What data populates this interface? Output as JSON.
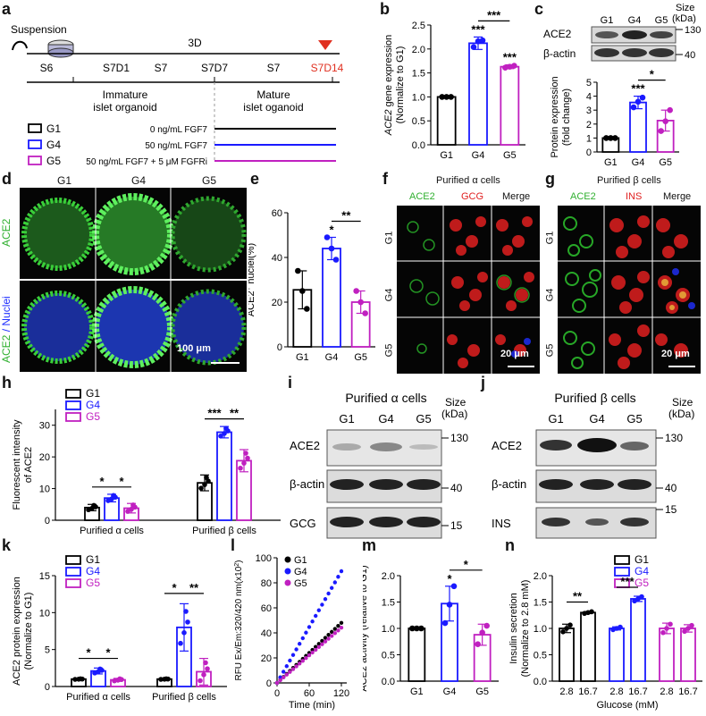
{
  "panel_letters": {
    "a": "a",
    "b": "b",
    "c": "c",
    "d": "d",
    "e": "e",
    "f": "f",
    "g": "g",
    "h": "h",
    "i": "i",
    "j": "j",
    "k": "k",
    "l": "l",
    "m": "m",
    "n": "n"
  },
  "colors": {
    "g1": "#000000",
    "g4": "#1a1aff",
    "g5": "#c020c0",
    "s7d14": "#e03020",
    "green": "#30d030",
    "red": "#e02020",
    "blue": "#2030ff"
  },
  "panel_a": {
    "suspension": "Suspension",
    "duration": "3D",
    "stages_top": [
      "S6",
      "S7D1",
      "S7",
      "S7D7",
      "S7",
      "S7D14"
    ],
    "immature": "Immature",
    "immature2": "islet organoid",
    "mature": "Mature",
    "mature2": "islet oganoid",
    "groups": [
      {
        "name": "G1",
        "condition": "0 ng/mL FGF7"
      },
      {
        "name": "G4",
        "condition": "50 ng/mL FGF7"
      },
      {
        "name": "G5",
        "condition": "50 ng/mL FGF7 + 5 μM FGFRi"
      }
    ]
  },
  "panel_c_blot": {
    "size_label": "Size",
    "size_unit": "(kDa)",
    "lanes": [
      "G1",
      "G4",
      "G5"
    ],
    "rows": [
      {
        "name": "ACE2",
        "marker": "130"
      },
      {
        "name": "β-actin",
        "marker": "40"
      }
    ]
  },
  "panel_d": {
    "cols": [
      "G1",
      "G4",
      "G5"
    ],
    "row1": "ACE2",
    "row2a": "ACE2",
    "row2b": " / Nuclei",
    "scale": "100 μm"
  },
  "panel_f": {
    "title": "Purified α cells",
    "cols": [
      "ACE2",
      "GCG",
      "Merge"
    ],
    "rows": [
      "G1",
      "G4",
      "G5"
    ],
    "scale": "20 μm"
  },
  "panel_g": {
    "title": "Purified β cells",
    "cols": [
      "ACE2",
      "INS",
      "Merge"
    ],
    "rows": [
      "G1",
      "G4",
      "G5"
    ],
    "scale": "20 μm"
  },
  "panel_i": {
    "title": "Purified α cells",
    "size_label": "Size",
    "size_unit": "(kDa)",
    "lanes": [
      "G1",
      "G4",
      "G5"
    ],
    "rows": [
      {
        "name": "ACE2",
        "marker": "130"
      },
      {
        "name": "β-actin",
        "marker": "40"
      },
      {
        "name": "GCG",
        "marker": "15"
      }
    ]
  },
  "panel_j": {
    "title": "Purified β cells",
    "size_label": "Size",
    "size_unit": "(kDa)",
    "lanes": [
      "G1",
      "G4",
      "G5"
    ],
    "rows": [
      {
        "name": "ACE2",
        "marker": "130"
      },
      {
        "name": "β-actin",
        "marker": "40"
      },
      {
        "name": "INS",
        "marker": "15"
      }
    ]
  },
  "chart_data": [
    {
      "id": "b",
      "type": "bar",
      "ylabel_italic": "ACE2",
      "ylabel": " gene expression",
      "ylabel2": "(Normalize to G1)",
      "categories": [
        "G1",
        "G4",
        "G5"
      ],
      "values": [
        1.0,
        2.12,
        1.63
      ],
      "errors": [
        0.01,
        0.13,
        0.04
      ],
      "ylim": [
        0,
        2.5
      ],
      "yticks": [
        "0.0",
        "0.5",
        "1.0",
        "1.5",
        "2.0",
        "2.5"
      ],
      "points": [
        [
          1.0,
          1.0,
          1.0
        ],
        [
          2.04,
          2.16,
          2.18
        ],
        [
          1.61,
          1.63,
          1.65
        ]
      ],
      "stars": [
        "",
        "***",
        "***"
      ],
      "brackets": [
        {
          "from": 1,
          "to": 2,
          "label": "***"
        }
      ]
    },
    {
      "id": "c",
      "type": "bar",
      "ylabel": "Protein expression",
      "ylabel2": "(fold change)",
      "categories": [
        "G1",
        "G4",
        "G5"
      ],
      "values": [
        1.0,
        3.55,
        2.25
      ],
      "errors": [
        0.03,
        0.45,
        0.75
      ],
      "ylim": [
        0,
        5
      ],
      "yticks": [
        "0",
        "1",
        "2",
        "3",
        "4",
        "5"
      ],
      "points": [
        [
          1.0,
          1.0,
          1.0
        ],
        [
          3.2,
          3.6,
          3.9
        ],
        [
          1.5,
          2.2,
          3.0
        ]
      ],
      "stars": [
        "",
        "***",
        ""
      ],
      "brackets": [
        {
          "from": 1,
          "to": 2,
          "label": "*"
        }
      ]
    },
    {
      "id": "e",
      "type": "bar",
      "ylabel_sup": "ACE2",
      "ylabel_sup_mark": "+",
      "ylabel": " nuclei(%)",
      "categories": [
        "G1",
        "G4",
        "G5"
      ],
      "values": [
        25.5,
        44,
        20
      ],
      "errors": [
        8.5,
        5,
        5
      ],
      "ylim": [
        0,
        60
      ],
      "yticks": [
        "0",
        "20",
        "40",
        "60"
      ],
      "points": [
        [
          34,
          25,
          17
        ],
        [
          49,
          44,
          39
        ],
        [
          25,
          20,
          15
        ]
      ],
      "stars": [
        "",
        "*",
        ""
      ],
      "brackets": [
        {
          "from": 1,
          "to": 2,
          "label": "**"
        }
      ]
    },
    {
      "id": "h",
      "type": "grouped_bar",
      "ylabel": "Fluorescent intensity",
      "ylabel2": "of ACE2",
      "groups": [
        "Purified α cells",
        "Purified β cells"
      ],
      "series": [
        {
          "name": "G1",
          "values": [
            4.0,
            11.8
          ],
          "errors": [
            1.0,
            2.5
          ]
        },
        {
          "name": "G4",
          "values": [
            7.0,
            27.8
          ],
          "errors": [
            1.2,
            1.8
          ]
        },
        {
          "name": "G5",
          "values": [
            3.8,
            18.8
          ],
          "errors": [
            1.5,
            3.5
          ]
        }
      ],
      "ylim": [
        0,
        35
      ],
      "yticks": [
        "0",
        "10",
        "20",
        "30"
      ],
      "bracket_labels": [
        "*",
        "*",
        "***",
        "**"
      ]
    },
    {
      "id": "k",
      "type": "grouped_bar",
      "ylabel": "ACE2 protein expression",
      "ylabel2": "(Normalize to G1)",
      "groups": [
        "Purified α cells",
        "Purified β cells"
      ],
      "series": [
        {
          "name": "G1",
          "values": [
            1.0,
            1.0
          ],
          "errors": [
            0.05,
            0.05
          ]
        },
        {
          "name": "G4",
          "values": [
            2.1,
            8.0
          ],
          "errors": [
            0.4,
            3.2
          ]
        },
        {
          "name": "G5",
          "values": [
            0.9,
            2.0
          ],
          "errors": [
            0.2,
            1.8
          ]
        }
      ],
      "ylim": [
        0,
        15
      ],
      "yticks": [
        "0",
        "5",
        "10",
        "15"
      ],
      "bracket_labels": [
        "*",
        "*",
        "*",
        "**"
      ]
    },
    {
      "id": "l",
      "type": "line",
      "ylabel": "RFU Ex/Em:320/420 nm(x10",
      "ylabel_sup": "2",
      "ylabel_end": ")",
      "xlabel": "Time (min)",
      "xlim": [
        0,
        130
      ],
      "ylim": [
        0,
        100
      ],
      "xticks": [
        "0",
        "60",
        "120"
      ],
      "yticks": [
        "0",
        "20",
        "40",
        "60",
        "80",
        "100"
      ],
      "series": [
        {
          "name": "G1",
          "end_x": 125,
          "end_y": 50
        },
        {
          "name": "G4",
          "end_x": 125,
          "end_y": 93
        },
        {
          "name": "G5",
          "end_x": 125,
          "end_y": 46
        }
      ]
    },
    {
      "id": "m",
      "type": "bar",
      "ylabel": "ACE2 activity (relative to G1)",
      "categories": [
        "G1",
        "G4",
        "G5"
      ],
      "values": [
        1.0,
        1.47,
        0.88
      ],
      "errors": [
        0.02,
        0.33,
        0.2
      ],
      "ylim": [
        0,
        2.0
      ],
      "yticks": [
        "0.0",
        "0.5",
        "1.0",
        "1.5",
        "2.0"
      ],
      "points": [
        [
          1.0,
          1.0,
          1.0
        ],
        [
          1.1,
          1.45,
          1.8
        ],
        [
          0.7,
          0.92,
          1.05
        ]
      ],
      "stars": [
        "",
        "*",
        ""
      ],
      "brackets": [
        {
          "from": 1,
          "to": 2,
          "label": "*"
        }
      ]
    },
    {
      "id": "n",
      "type": "grouped_bar",
      "ylabel": "Insulin secretion",
      "ylabel2": "(Normalize to 2.8 mM)",
      "xlabel": "Glucose (mM)",
      "groups": [
        "G1",
        "G4",
        "G5"
      ],
      "xcats": [
        "2.8",
        "16.7"
      ],
      "values": [
        [
          1.0,
          1.3
        ],
        [
          1.0,
          1.56
        ],
        [
          1.0,
          1.0
        ]
      ],
      "errors": [
        [
          0.08,
          0.02
        ],
        [
          0.03,
          0.05
        ],
        [
          0.1,
          0.07
        ]
      ],
      "ylim": [
        0,
        2.0
      ],
      "yticks": [
        "0.0",
        "0.5",
        "1.0",
        "1.5",
        "2.0"
      ],
      "bracket_labels": [
        "**",
        "***"
      ]
    }
  ]
}
